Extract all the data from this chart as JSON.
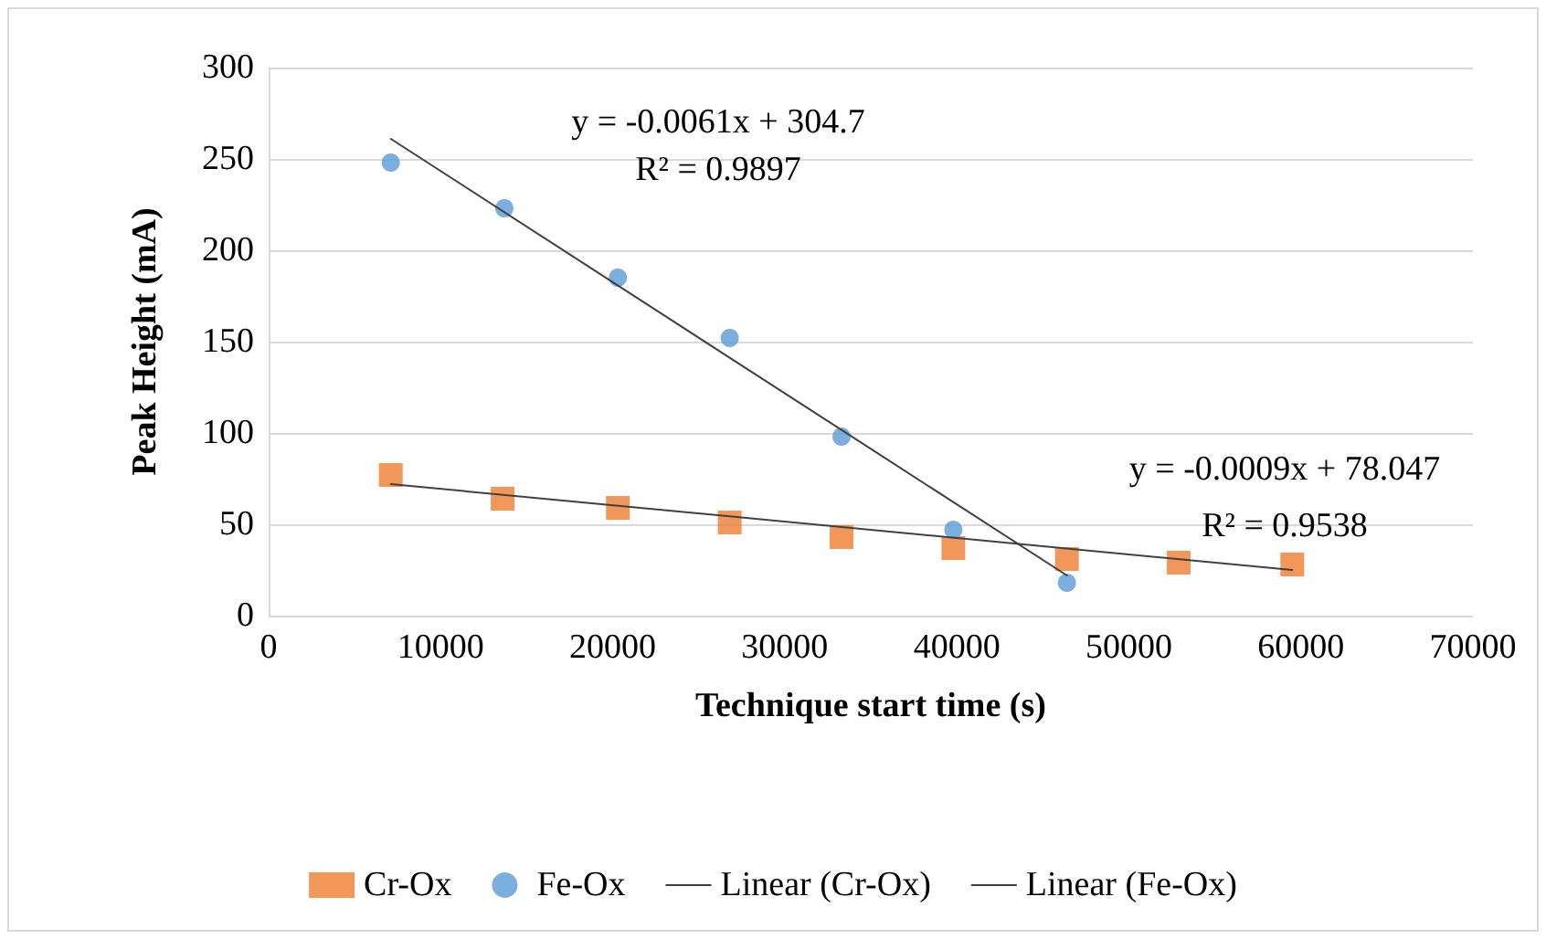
{
  "chart_data": {
    "type": "scatter",
    "xlabel": "Technique start time (s)",
    "ylabel": "Peak Height (mA)",
    "xlim": [
      0,
      70000
    ],
    "xticks": [
      0,
      10000,
      20000,
      30000,
      40000,
      50000,
      60000,
      70000
    ],
    "ylim": [
      0,
      300
    ],
    "yticks": [
      0,
      50,
      100,
      150,
      200,
      250,
      300
    ],
    "grid": "y",
    "legend": "bottom",
    "series": [
      {
        "name": "Cr-Ox",
        "marker": "square",
        "color": "#ed7d31",
        "x": [
          7100,
          13600,
          20300,
          26800,
          33300,
          39800,
          46400,
          52900,
          59500
        ],
        "values": [
          77,
          64,
          59,
          51,
          43,
          37,
          31,
          29,
          28
        ]
      },
      {
        "name": "Fe-Ox",
        "marker": "circle",
        "color": "#5b9bd5",
        "x": [
          7100,
          13700,
          20300,
          26800,
          33300,
          39800,
          46400
        ],
        "values": [
          248,
          223,
          185,
          152,
          98,
          47,
          18
        ]
      },
      {
        "name": "Linear (Cr-Ox)",
        "type": "line",
        "marker": "none",
        "line_style": "solid",
        "color": "#404040",
        "x": [
          7100,
          59500
        ],
        "values": [
          72,
          25
        ]
      },
      {
        "name": "Linear (Fe-Ox)",
        "type": "line",
        "marker": "none",
        "line_style": "solid",
        "color": "#404040",
        "x": [
          7100,
          46400
        ],
        "values": [
          261,
          22
        ]
      }
    ],
    "annotations": [
      "y = -0.0061x + 304.7",
      "R² = 0.9897",
      "y = -0.0009x + 78.047",
      "R² = 0.9538"
    ]
  }
}
